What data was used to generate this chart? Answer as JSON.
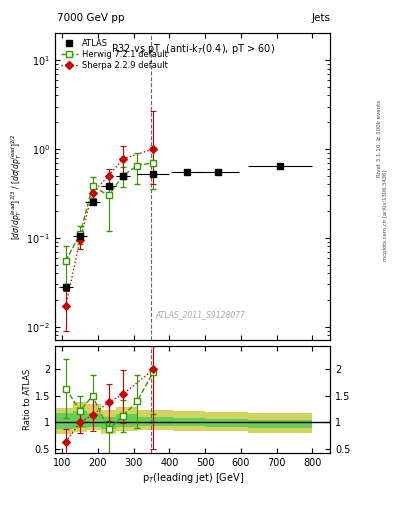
{
  "title_top_left": "7000 GeV pp",
  "title_top_right": "Jets",
  "plot_title": "R32 vs pT  (anti-k_{T}(0.4), pT > 60)",
  "ylabel_main": "[d#sigma/dp_{T}^{lead}]^{2/3} / [d#sigma/dp_{T}^{lead}]^{2/2}",
  "ylabel_ratio": "Ratio to ATLAS",
  "xlabel": "p_{T}(leading jet) [GeV]",
  "right_label_top": "Rivet 3.1.10, #geq 100k events",
  "right_label_bot": "mcplots.cern.ch [arXiv:1306.3436]",
  "watermark": "ATLAS_2011_S9128077",
  "atlas_x": [
    110,
    150,
    185,
    230,
    270,
    355,
    450,
    535,
    710
  ],
  "atlas_y": [
    0.028,
    0.105,
    0.25,
    0.38,
    0.5,
    0.52,
    0.55,
    0.55,
    0.65
  ],
  "atlas_xerr": [
    20,
    20,
    20,
    20,
    20,
    45,
    45,
    60,
    90
  ],
  "herwig_x": [
    110,
    150,
    185,
    230,
    270,
    310,
    355
  ],
  "herwig_y": [
    0.055,
    0.11,
    0.38,
    0.3,
    0.5,
    0.65,
    0.7
  ],
  "herwig_yerr_lo": [
    0.025,
    0.025,
    0.1,
    0.18,
    0.13,
    0.25,
    0.35
  ],
  "herwig_yerr_hi": [
    0.025,
    0.025,
    0.1,
    0.18,
    0.13,
    0.25,
    0.35
  ],
  "sherpa_x": [
    110,
    150,
    185,
    230,
    270,
    355
  ],
  "sherpa_y": [
    0.017,
    0.095,
    0.32,
    0.5,
    0.77,
    1.0
  ],
  "sherpa_yerr_lo": [
    0.008,
    0.02,
    0.08,
    0.1,
    0.3,
    0.6
  ],
  "sherpa_yerr_hi": [
    0.008,
    0.02,
    0.08,
    0.1,
    0.3,
    1.7
  ],
  "herwig_ratio_x": [
    110,
    150,
    185,
    230,
    270,
    310,
    355
  ],
  "herwig_ratio_y": [
    1.64,
    1.22,
    1.5,
    0.87,
    1.12,
    1.4,
    1.95
  ],
  "herwig_ratio_yerr_lo": [
    0.55,
    0.28,
    0.4,
    0.48,
    0.3,
    0.5,
    0.8
  ],
  "herwig_ratio_yerr_hi": [
    0.55,
    0.28,
    0.4,
    0.48,
    0.3,
    0.5,
    0.5
  ],
  "sherpa_ratio_x": [
    110,
    150,
    185,
    230,
    270,
    355
  ],
  "sherpa_ratio_y": [
    0.63,
    1.0,
    1.14,
    1.38,
    1.53,
    2.0
  ],
  "sherpa_ratio_yerr_lo": [
    0.25,
    0.2,
    0.3,
    0.35,
    0.55,
    1.5
  ],
  "sherpa_ratio_yerr_hi": [
    0.25,
    0.2,
    0.3,
    0.35,
    0.45,
    0.45
  ],
  "band_x_edges": [
    80,
    130,
    170,
    210,
    250,
    310,
    410,
    500,
    620,
    800
  ],
  "band_inner_lo": [
    0.88,
    0.9,
    0.92,
    0.88,
    0.92,
    0.93,
    0.93,
    0.92,
    0.9,
    0.9
  ],
  "band_inner_hi": [
    1.18,
    1.22,
    1.18,
    1.1,
    1.15,
    1.1,
    1.08,
    1.07,
    1.05,
    1.18
  ],
  "band_outer_lo": [
    0.78,
    0.82,
    0.85,
    0.78,
    0.84,
    0.86,
    0.84,
    0.83,
    0.8,
    0.8
  ],
  "band_outer_hi": [
    1.28,
    1.38,
    1.34,
    1.24,
    1.3,
    1.24,
    1.22,
    1.2,
    1.18,
    1.38
  ],
  "vline_x": 350,
  "xlim": [
    80,
    850
  ],
  "ylim_main_lo": 0.007,
  "ylim_main_hi": 20,
  "ylim_ratio_lo": 0.42,
  "ylim_ratio_hi": 2.45,
  "color_atlas": "#000000",
  "color_herwig": "#339900",
  "color_sherpa": "#cc0000",
  "color_band_inner": "#55cc55",
  "color_band_outer": "#cccc44",
  "color_vline": "#666666"
}
